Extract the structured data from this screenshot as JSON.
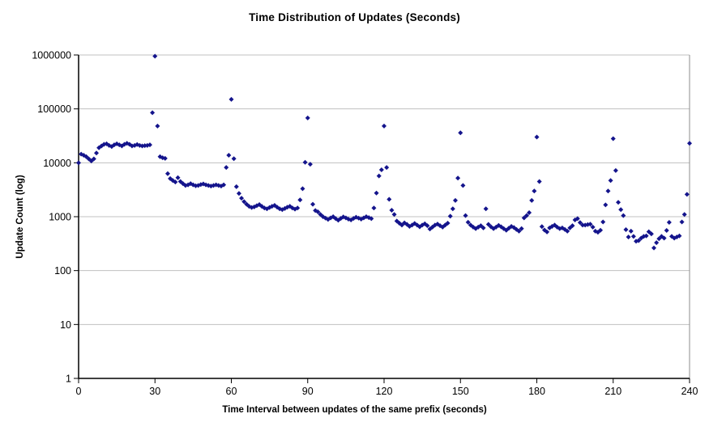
{
  "chart_data": {
    "type": "scatter",
    "title": "Time Distribution of Updates (Seconds)",
    "xlabel": "Time Interval between updates of the same prefix (seconds)",
    "ylabel": "Update Count (log)",
    "y_scale": "log",
    "xlim": [
      0,
      240
    ],
    "ylim": [
      1,
      1000000
    ],
    "x_ticks": [
      0,
      30,
      60,
      90,
      120,
      150,
      180,
      210,
      240
    ],
    "y_ticks": [
      1,
      10,
      100,
      1000,
      10000,
      100000,
      1000000
    ],
    "grid": "horizontal-gridlines",
    "legend": "none",
    "marker": {
      "shape": "diamond",
      "color": "#14148c",
      "size": 6
    },
    "colors": {
      "gridline": "#c0c0c0",
      "axis": "#000000",
      "plot_right_border": "#8c8c8c"
    },
    "series": [
      {
        "name": "update-count",
        "x": [
          0,
          1,
          2,
          3,
          4,
          5,
          6,
          7,
          8,
          9,
          10,
          11,
          12,
          13,
          14,
          15,
          16,
          17,
          18,
          19,
          20,
          21,
          22,
          23,
          24,
          25,
          26,
          27,
          28,
          29,
          30,
          31,
          32,
          33,
          34,
          35,
          36,
          37,
          38,
          39,
          40,
          41,
          42,
          43,
          44,
          45,
          46,
          47,
          48,
          49,
          50,
          51,
          52,
          53,
          54,
          55,
          56,
          57,
          58,
          59,
          60,
          61,
          62,
          63,
          64,
          65,
          66,
          67,
          68,
          69,
          70,
          71,
          72,
          73,
          74,
          75,
          76,
          77,
          78,
          79,
          80,
          81,
          82,
          83,
          84,
          85,
          86,
          87,
          88,
          89,
          90,
          91,
          92,
          93,
          94,
          95,
          96,
          97,
          98,
          99,
          100,
          101,
          102,
          103,
          104,
          105,
          106,
          107,
          108,
          109,
          110,
          111,
          112,
          113,
          114,
          115,
          116,
          117,
          118,
          119,
          120,
          121,
          122,
          123,
          124,
          125,
          126,
          127,
          128,
          129,
          130,
          131,
          132,
          133,
          134,
          135,
          136,
          137,
          138,
          139,
          140,
          141,
          142,
          143,
          144,
          145,
          146,
          147,
          148,
          149,
          150,
          151,
          152,
          153,
          154,
          155,
          156,
          157,
          158,
          159,
          160,
          161,
          162,
          163,
          164,
          165,
          166,
          167,
          168,
          169,
          170,
          171,
          172,
          173,
          174,
          175,
          176,
          177,
          178,
          179,
          180,
          181,
          182,
          183,
          184,
          185,
          186,
          187,
          188,
          189,
          190,
          191,
          192,
          193,
          194,
          195,
          196,
          197,
          198,
          199,
          200,
          201,
          202,
          203,
          204,
          205,
          206,
          207,
          208,
          209,
          210,
          211,
          212,
          213,
          214,
          215,
          216,
          217,
          218,
          219,
          220,
          221,
          222,
          223,
          224,
          225,
          226,
          227,
          228,
          229,
          230,
          231,
          232,
          233,
          234,
          235,
          236,
          237,
          238,
          239,
          240
        ],
        "y": [
          10000,
          14500,
          13800,
          13000,
          11800,
          10800,
          11800,
          15200,
          19000,
          20500,
          22000,
          22500,
          21000,
          20000,
          21500,
          22500,
          21500,
          20500,
          22000,
          23000,
          22000,
          20500,
          21000,
          21800,
          21000,
          20500,
          20800,
          21000,
          21500,
          85000,
          950000,
          48000,
          13000,
          12400,
          12100,
          6300,
          5100,
          4700,
          4400,
          5300,
          4500,
          4100,
          3800,
          3900,
          4100,
          3900,
          3750,
          3800,
          3950,
          4050,
          3900,
          3800,
          3700,
          3800,
          3900,
          3800,
          3700,
          3900,
          8200,
          13800,
          150000,
          11900,
          3600,
          2700,
          2200,
          1900,
          1700,
          1550,
          1480,
          1520,
          1600,
          1680,
          1550,
          1450,
          1400,
          1480,
          1560,
          1620,
          1500,
          1400,
          1350,
          1420,
          1500,
          1560,
          1450,
          1380,
          1450,
          2050,
          3300,
          10200,
          68000,
          9400,
          1700,
          1300,
          1230,
          1100,
          1000,
          940,
          890,
          950,
          1000,
          920,
          860,
          930,
          990,
          950,
          900,
          870,
          930,
          980,
          940,
          900,
          950,
          1000,
          960,
          920,
          1450,
          2750,
          5700,
          7400,
          48000,
          8200,
          2100,
          1320,
          1100,
          830,
          760,
          700,
          770,
          720,
          660,
          700,
          750,
          700,
          650,
          700,
          740,
          680,
          590,
          640,
          700,
          730,
          680,
          640,
          700,
          760,
          1020,
          1400,
          2000,
          5200,
          36000,
          3800,
          1050,
          790,
          700,
          640,
          600,
          640,
          680,
          620,
          1400,
          720,
          650,
          600,
          640,
          690,
          650,
          600,
          560,
          610,
          660,
          630,
          580,
          540,
          600,
          950,
          1050,
          1190,
          2000,
          3000,
          30000,
          4500,
          655,
          565,
          520,
          620,
          660,
          700,
          640,
          600,
          620,
          580,
          540,
          620,
          680,
          870,
          920,
          780,
          700,
          700,
          715,
          725,
          640,
          540,
          515,
          560,
          800,
          1660,
          3000,
          4700,
          28000,
          7200,
          1850,
          1350,
          1050,
          575,
          420,
          540,
          430,
          350,
          360,
          400,
          430,
          440,
          525,
          480,
          263,
          330,
          390,
          430,
          400,
          555,
          785,
          430,
          400,
          420,
          440,
          800,
          1100,
          2600,
          23000
        ]
      }
    ]
  }
}
